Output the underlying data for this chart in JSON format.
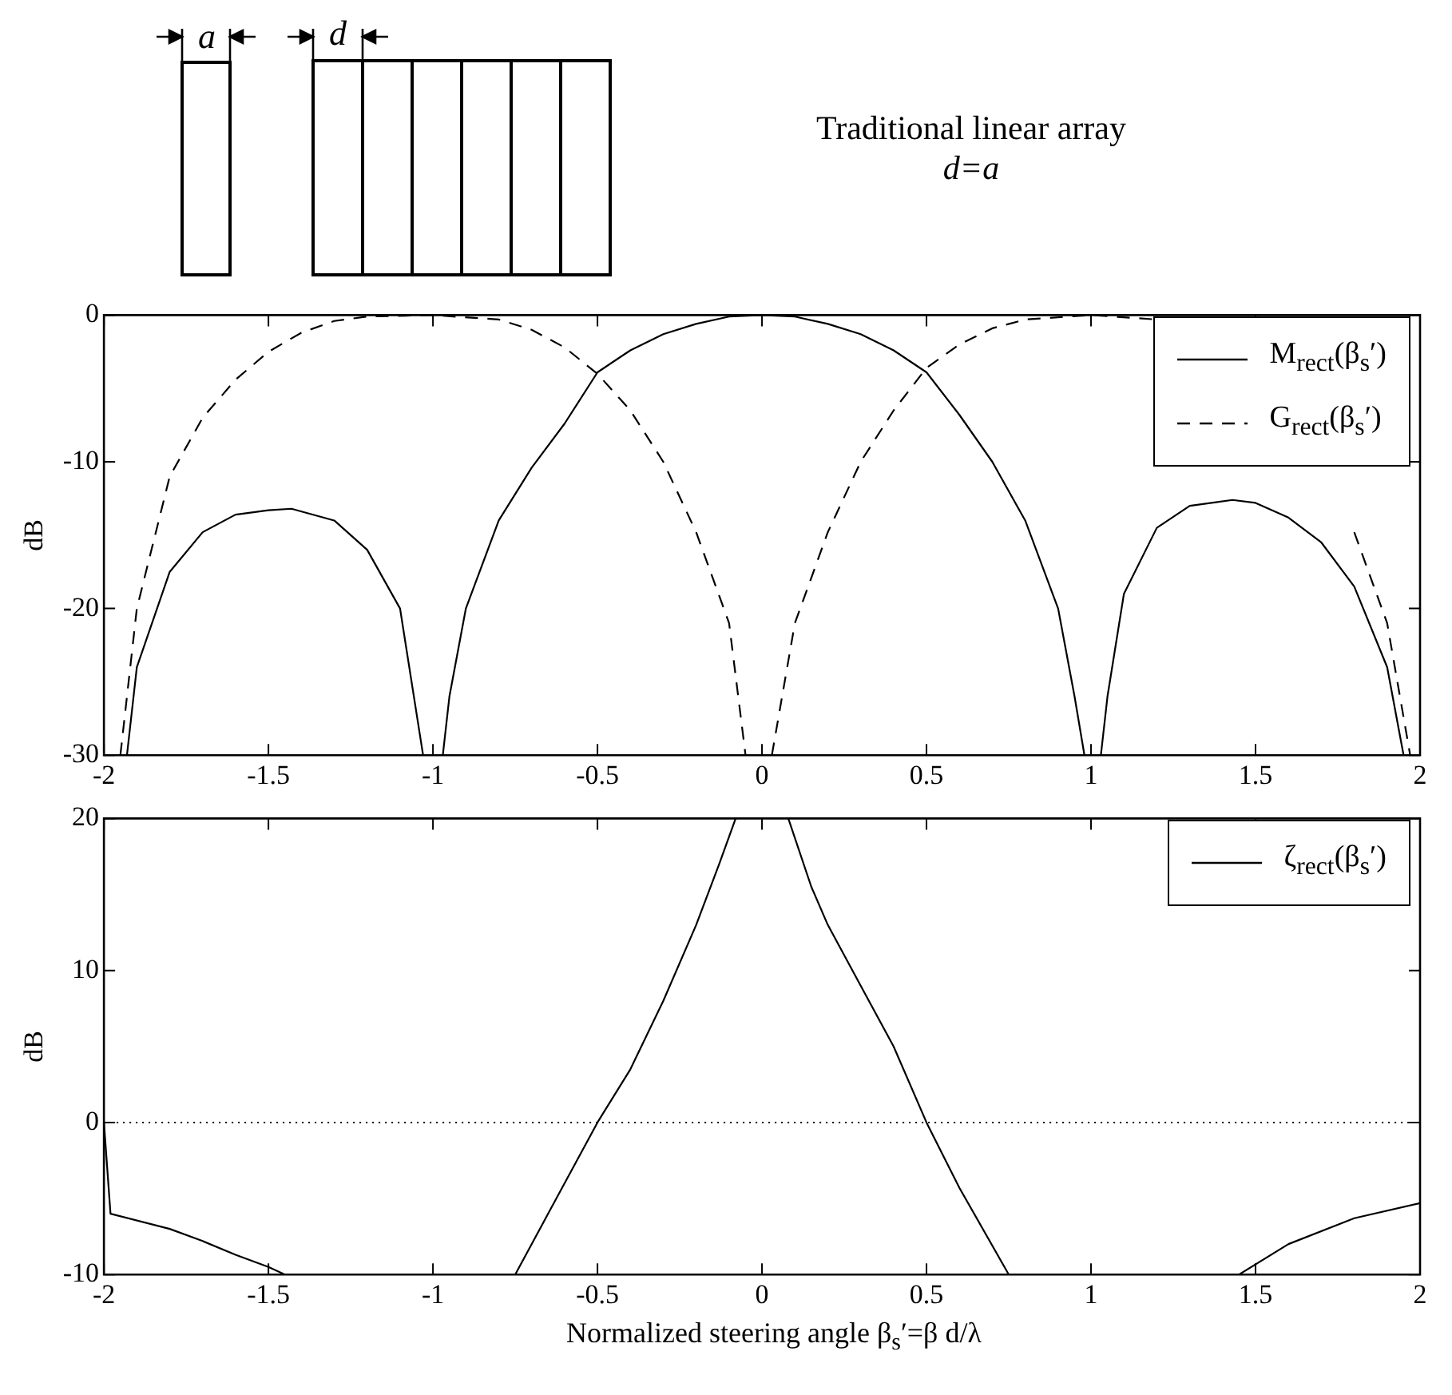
{
  "chart_data": [
    {
      "type": "line",
      "title": "Traditional linear array",
      "subtitle": "d=a",
      "ylabel": "dB",
      "annotations": [
        "a",
        "d"
      ],
      "xlim": [
        -2,
        2
      ],
      "xticks": [
        -2,
        -1.5,
        -1,
        -0.5,
        0,
        0.5,
        1,
        1.5,
        2
      ],
      "ylim": [
        -30,
        0
      ],
      "yticks": [
        -30,
        -20,
        -10,
        0
      ],
      "grid": false,
      "legend": "top right",
      "series": [
        {
          "name": "M$_{rect}$(β$_{s}$′)",
          "color": "#000000",
          "line_style": "solid",
          "x": [
            -1.93,
            -1.9,
            -1.8,
            -1.7,
            -1.6,
            -1.5,
            -1.43,
            -1.3,
            -1.2,
            -1.1,
            -1.03,
            -1.0,
            -0.97,
            -0.95,
            -0.9,
            -0.8,
            -0.7,
            -0.6,
            -0.5,
            -0.4,
            -0.3,
            -0.2,
            -0.1,
            0,
            0.1,
            0.2,
            0.3,
            0.4,
            0.5,
            0.6,
            0.7,
            0.8,
            0.9,
            0.95,
            0.98,
            1.0,
            1.03,
            1.05,
            1.1,
            1.2,
            1.3,
            1.43,
            1.5,
            1.6,
            1.7,
            1.8,
            1.9,
            1.95
          ],
          "values": [
            -30,
            -24,
            -17.5,
            -14.8,
            -13.6,
            -13.3,
            -13.2,
            -14,
            -16,
            -20,
            -30,
            null,
            -30,
            -26,
            -20,
            -14,
            -10.4,
            -7.4,
            -3.9,
            -2.4,
            -1.3,
            -0.6,
            -0.1,
            0,
            -0.1,
            -0.6,
            -1.3,
            -2.4,
            -3.9,
            -6.8,
            -10,
            -14,
            -20,
            -26,
            -30,
            null,
            -30,
            -26,
            -19,
            -14.5,
            -13,
            -12.6,
            -12.8,
            -13.8,
            -15.5,
            -18.5,
            -24,
            -30
          ]
        },
        {
          "name": "G$_{rect}$(β$_{s}$′)",
          "color": "#000000",
          "line_style": "dashed",
          "x": [
            -1.95,
            -1.9,
            -1.8,
            -1.7,
            -1.6,
            -1.5,
            -1.4,
            -1.3,
            -1.2,
            -1.0,
            -0.8,
            -0.7,
            -0.6,
            -0.5,
            -0.4,
            -0.3,
            -0.2,
            -0.1,
            -0.05,
            0,
            0.03,
            0.1,
            0.2,
            0.3,
            0.4,
            0.5,
            0.6,
            0.7,
            0.8,
            1.0,
            1.2,
            1.3,
            1.4,
            1.5,
            1.6,
            1.7,
            1.8,
            1.9,
            1.97
          ],
          "values": [
            -30,
            -20,
            -11,
            -7,
            -4.4,
            -2.5,
            -1.2,
            -0.4,
            -0.1,
            0,
            -0.3,
            -1,
            -2.2,
            -4,
            -6.5,
            -10,
            -14.8,
            -21,
            -30,
            null,
            -30,
            -21,
            -14.8,
            -10,
            -6.5,
            -3.6,
            -2,
            -0.9,
            -0.3,
            0,
            -0.3,
            null,
            null,
            null,
            null,
            null,
            -14.8,
            -21,
            -30
          ]
        }
      ]
    },
    {
      "type": "line",
      "xlabel": "Normalized steering angle β$_{s}$′=β d/λ",
      "ylabel": "dB",
      "xlim": [
        -2,
        2
      ],
      "xticks": [
        -2,
        -1.5,
        -1,
        -0.5,
        0,
        0.5,
        1,
        1.5,
        2
      ],
      "ylim": [
        -10,
        20
      ],
      "yticks": [
        -10,
        0,
        10,
        20
      ],
      "grid": false,
      "legend": "top right",
      "ref_lines": [
        {
          "axis": "y",
          "value": 0,
          "color": "#000000",
          "line_style": "dotted"
        }
      ],
      "series": [
        {
          "name": "ζ$_{rect}$(β$_{s}$′)",
          "color": "#000000",
          "line_style": "solid",
          "x": [
            -2,
            -1.98,
            -1.8,
            -1.7,
            -1.6,
            -1.5,
            -1.45,
            -1.0,
            -0.75,
            -0.65,
            -0.5,
            -0.4,
            -0.3,
            -0.2,
            -0.13,
            -0.08,
            0,
            0.08,
            0.15,
            0.2,
            0.3,
            0.4,
            0.5,
            0.6,
            0.75,
            1.0,
            1.45,
            1.6,
            1.8,
            2
          ],
          "values": [
            0,
            -6,
            -7,
            -7.8,
            -8.7,
            -9.5,
            -10,
            null,
            -10,
            -6,
            0,
            3.5,
            8,
            13,
            17,
            20,
            null,
            20,
            15.5,
            13,
            9,
            5,
            0,
            -4.3,
            -10,
            null,
            -10,
            -8,
            -6.3,
            -5.3
          ]
        }
      ]
    }
  ]
}
